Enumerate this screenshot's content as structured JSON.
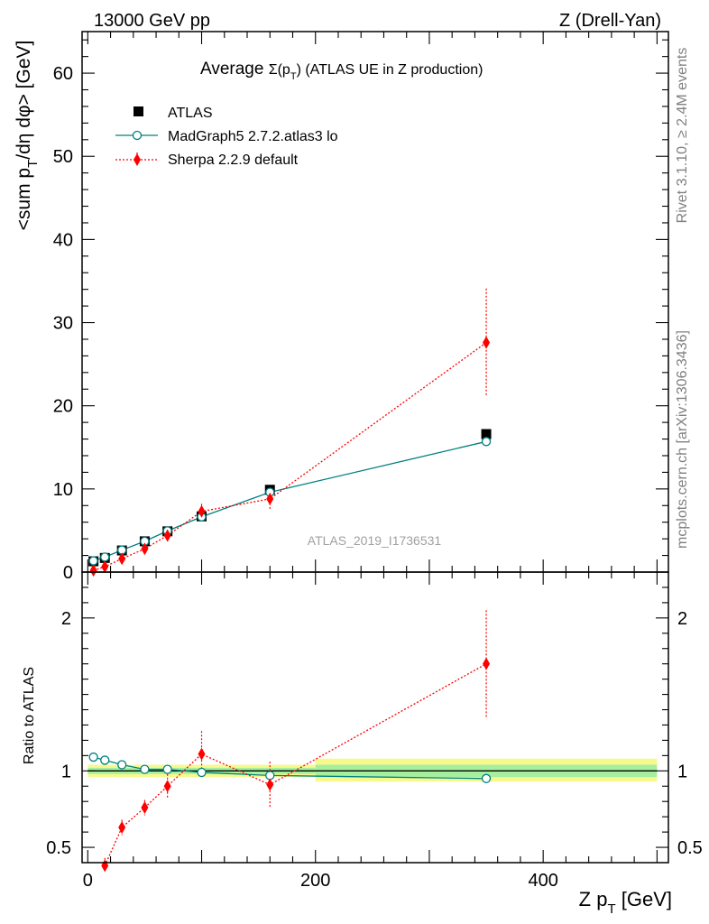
{
  "header": {
    "left": "13000 GeV pp",
    "right": "Z (Drell-Yan)"
  },
  "side": {
    "rivet": "Rivet 3.1.10, ≥ 2.4M events",
    "mcplots": "mcplots.cern.ch [arXiv:1306.3436]"
  },
  "watermark": "ATLAS_2019_I1736531",
  "main_title": {
    "prefix": "Average ",
    "sigma": "Σ(p",
    "sub": "T",
    "suffix": ") (ATLAS UE in Z production)"
  },
  "ylabel_main": {
    "a": "<sum p",
    "sub": "T",
    "b": "/dη dφ> [GeV]"
  },
  "ylabel_ratio": "Ratio to ATLAS",
  "xlabel": {
    "a": "Z p",
    "sub": "T",
    "b": " [GeV]"
  },
  "colors": {
    "atlas": "#000000",
    "madgraph": "#008080",
    "sherpa": "#ff0000",
    "band_inner": "#a5ef9e",
    "band_outer": "#f6f98c"
  },
  "chart_data": [
    {
      "type": "scatter",
      "panel": "main",
      "title": "Average Σ(pT) (ATLAS UE in Z production)",
      "xlabel": "Z pT [GeV]",
      "ylabel": "<sum pT/dη dφ> [GeV]",
      "xlim": [
        -5,
        510
      ],
      "ylim": [
        0,
        65
      ],
      "y_ticks": [
        0,
        10,
        20,
        30,
        40,
        50,
        60
      ],
      "x_ticks": [
        0,
        200,
        400
      ],
      "legend_position": "top-left",
      "series": [
        {
          "name": "ATLAS",
          "marker": "square",
          "x": [
            5,
            15,
            30,
            50,
            70,
            100,
            160,
            350
          ],
          "y": [
            1.3,
            1.7,
            2.6,
            3.7,
            4.9,
            6.7,
            9.9,
            16.6
          ]
        },
        {
          "name": "MadGraph5 2.7.2.atlas3 lo",
          "marker": "open-circle",
          "line": "solid",
          "x": [
            5,
            15,
            30,
            50,
            70,
            100,
            160,
            350
          ],
          "y": [
            1.35,
            1.8,
            2.65,
            3.7,
            4.95,
            6.65,
            9.6,
            15.7
          ]
        },
        {
          "name": "Sherpa 2.2.9 default",
          "marker": "diamond",
          "line": "dotted",
          "x": [
            5,
            15,
            30,
            50,
            70,
            100,
            160,
            350
          ],
          "y": [
            0.2,
            0.65,
            1.6,
            2.8,
            4.4,
            7.3,
            8.8,
            27.6
          ],
          "err": [
            0.2,
            0.15,
            0.3,
            0.35,
            0.4,
            0.9,
            1.2,
            6.5
          ]
        }
      ]
    },
    {
      "type": "scatter",
      "panel": "ratio",
      "ylabel": "Ratio to ATLAS",
      "xlabel": "Z pT [GeV]",
      "xlim": [
        -5,
        510
      ],
      "ylim": [
        0.4,
        2.3
      ],
      "y_ticks": [
        0.5,
        1,
        2
      ],
      "y_tick_labels": [
        "0.5",
        "1",
        "2"
      ],
      "x_ticks": [
        0,
        200,
        400
      ],
      "x_tick_labels": [
        "0",
        "200",
        "400"
      ],
      "atlas_band": {
        "bins": [
          [
            0,
            200,
            0.96,
            1.04,
            0.98,
            1.02
          ],
          [
            200,
            500,
            0.93,
            1.08,
            0.96,
            1.04
          ]
        ]
      },
      "series": [
        {
          "name": "MadGraph5 2.7.2.atlas3 lo",
          "x": [
            5,
            15,
            30,
            50,
            70,
            100,
            160,
            350
          ],
          "y": [
            1.09,
            1.07,
            1.04,
            1.01,
            1.01,
            0.99,
            0.97,
            0.95
          ]
        },
        {
          "name": "Sherpa 2.2.9 default",
          "x": [
            15,
            30,
            50,
            70,
            100,
            160,
            350
          ],
          "y": [
            0.38,
            0.63,
            0.76,
            0.9,
            1.11,
            0.91,
            1.7
          ],
          "err": [
            0.05,
            0.05,
            0.05,
            0.08,
            0.15,
            0.15,
            0.35
          ]
        }
      ]
    }
  ]
}
